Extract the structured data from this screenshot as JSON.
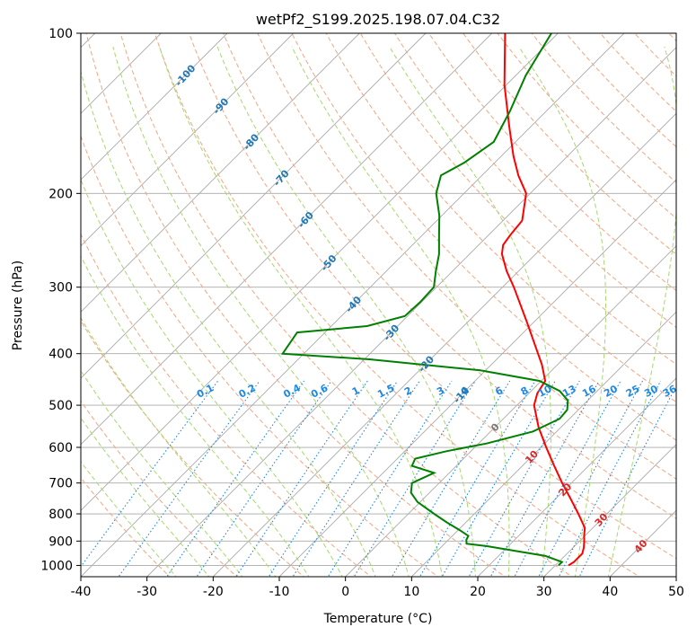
{
  "chart_data": {
    "type": "skew-t log-p",
    "title": "wetPf2_S199.2025.198.07.04.C32",
    "xlabel": "Temperature (°C)",
    "ylabel": "Pressure (hPa)",
    "xlim": [
      -40,
      50
    ],
    "ylim": [
      1050,
      100
    ],
    "y_scale": "log",
    "grid": true,
    "x_ticks": [
      "-40",
      "-30",
      "-20",
      "-10",
      "0",
      "10",
      "20",
      "30",
      "40",
      "50"
    ],
    "y_ticks": [
      "100",
      "200",
      "300",
      "400",
      "500",
      "600",
      "700",
      "800",
      "900",
      "1000"
    ],
    "colors": {
      "temperature": "#ff0000",
      "dewpoint": "#008000",
      "isotherm": "#aaaaaa",
      "dry_adiabat": "#f4a582",
      "moist_adiabat": "#a6d96a",
      "mixing_ratio": "#1e88e5",
      "isotherm_label": "#1f77b4",
      "zero_label": "#777777",
      "warm_label": "#d62728"
    },
    "isotherm_labels": [
      {
        "text": "-100",
        "p": 120
      },
      {
        "text": "-90",
        "p": 137
      },
      {
        "text": "-80",
        "p": 160
      },
      {
        "text": "-70",
        "p": 187
      },
      {
        "text": "-60",
        "p": 224
      },
      {
        "text": "-50",
        "p": 270
      },
      {
        "text": "-40",
        "p": 323
      },
      {
        "text": "-30",
        "p": 365
      },
      {
        "text": "-20",
        "p": 418
      },
      {
        "text": "-10",
        "p": 478
      },
      {
        "text": "0",
        "p": 550
      },
      {
        "text": "10",
        "p": 625
      },
      {
        "text": "20",
        "p": 720
      },
      {
        "text": "30",
        "p": 820
      },
      {
        "text": "40",
        "p": 920
      }
    ],
    "mixing_ratio_labels": [
      "0.1",
      "0.2",
      "0.4",
      "0.6",
      "1",
      "1.5",
      "2",
      "3",
      "4",
      "6",
      "8",
      "10",
      "13",
      "16",
      "20",
      "25",
      "30",
      "36"
    ],
    "mixing_ratio_label_p": 480,
    "temperature": [
      {
        "p": 1000,
        "t": 32.0
      },
      {
        "p": 985,
        "t": 32.3
      },
      {
        "p": 950,
        "t": 32.3
      },
      {
        "p": 925,
        "t": 31.6
      },
      {
        "p": 900,
        "t": 30.7
      },
      {
        "p": 880,
        "t": 29.9
      },
      {
        "p": 850,
        "t": 28.8
      },
      {
        "p": 800,
        "t": 25.7
      },
      {
        "p": 750,
        "t": 22.3
      },
      {
        "p": 700,
        "t": 18.6
      },
      {
        "p": 650,
        "t": 14.8
      },
      {
        "p": 600,
        "t": 10.8
      },
      {
        "p": 550,
        "t": 6.6
      },
      {
        "p": 500,
        "t": 2.6
      },
      {
        "p": 475,
        "t": 1.3
      },
      {
        "p": 450,
        "t": 0.6
      },
      {
        "p": 420,
        "t": -2.3
      },
      {
        "p": 400,
        "t": -4.6
      },
      {
        "p": 350,
        "t": -10.9
      },
      {
        "p": 300,
        "t": -18.3
      },
      {
        "p": 280,
        "t": -21.8
      },
      {
        "p": 260,
        "t": -25.1
      },
      {
        "p": 250,
        "t": -26.3
      },
      {
        "p": 240,
        "t": -26.7
      },
      {
        "p": 225,
        "t": -27.1
      },
      {
        "p": 200,
        "t": -30.6
      },
      {
        "p": 185,
        "t": -34.5
      },
      {
        "p": 170,
        "t": -38.2
      },
      {
        "p": 150,
        "t": -43.2
      },
      {
        "p": 125,
        "t": -50.3
      },
      {
        "p": 100,
        "t": -58.0
      }
    ],
    "dewpoint": [
      {
        "p": 1000,
        "t": 30.5
      },
      {
        "p": 985,
        "t": 30.5
      },
      {
        "p": 960,
        "t": 27.1
      },
      {
        "p": 940,
        "t": 22.0
      },
      {
        "p": 920,
        "t": 16.8
      },
      {
        "p": 910,
        "t": 13.3
      },
      {
        "p": 895,
        "t": 12.7
      },
      {
        "p": 880,
        "t": 12.4
      },
      {
        "p": 860,
        "t": 10.4
      },
      {
        "p": 830,
        "t": 7.1
      },
      {
        "p": 800,
        "t": 3.9
      },
      {
        "p": 760,
        "t": -0.4
      },
      {
        "p": 730,
        "t": -2.8
      },
      {
        "p": 700,
        "t": -4.1
      },
      {
        "p": 670,
        "t": -2.3
      },
      {
        "p": 650,
        "t": -6.7
      },
      {
        "p": 630,
        "t": -7.3
      },
      {
        "p": 610,
        "t": -3.7
      },
      {
        "p": 590,
        "t": 1.2
      },
      {
        "p": 560,
        "t": 6.4
      },
      {
        "p": 530,
        "t": 8.5
      },
      {
        "p": 510,
        "t": 8.3
      },
      {
        "p": 490,
        "t": 7.0
      },
      {
        "p": 470,
        "t": 4.3
      },
      {
        "p": 450,
        "t": -0.3
      },
      {
        "p": 430,
        "t": -10.8
      },
      {
        "p": 410,
        "t": -29.2
      },
      {
        "p": 400,
        "t": -43.2
      },
      {
        "p": 365,
        "t": -44.2
      },
      {
        "p": 355,
        "t": -34.6
      },
      {
        "p": 340,
        "t": -30.4
      },
      {
        "p": 320,
        "t": -30.2
      },
      {
        "p": 300,
        "t": -30.4
      },
      {
        "p": 280,
        "t": -32.5
      },
      {
        "p": 260,
        "t": -34.6
      },
      {
        "p": 240,
        "t": -37.4
      },
      {
        "p": 220,
        "t": -40.4
      },
      {
        "p": 200,
        "t": -44.2
      },
      {
        "p": 185,
        "t": -46.2
      },
      {
        "p": 175,
        "t": -44.6
      },
      {
        "p": 160,
        "t": -43.3
      },
      {
        "p": 140,
        "t": -45.5
      },
      {
        "p": 120,
        "t": -48.5
      },
      {
        "p": 100,
        "t": -51.0
      }
    ]
  }
}
